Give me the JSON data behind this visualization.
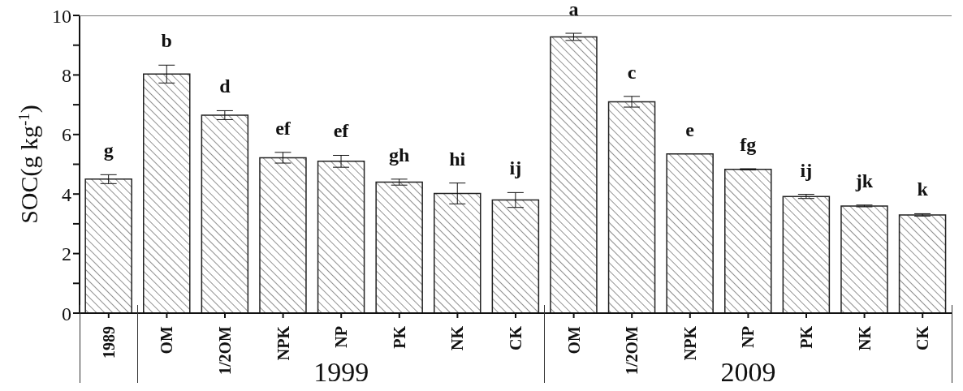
{
  "chart_data": {
    "type": "bar",
    "ylabel": "SOC(g kg$^{-1}$)",
    "categories": [
      "1989",
      "OM",
      "1/2OM",
      "NPK",
      "NP",
      "PK",
      "NK",
      "CK",
      "OM",
      "1/2OM",
      "NPK",
      "NP",
      "PK",
      "NK",
      "CK"
    ],
    "values": [
      4.5,
      8.03,
      6.65,
      5.22,
      5.1,
      4.4,
      4.02,
      3.8,
      9.28,
      7.1,
      5.35,
      4.83,
      3.92,
      3.6,
      3.3
    ],
    "errors": [
      0.15,
      0.3,
      0.15,
      0.18,
      0.2,
      0.1,
      0.35,
      0.25,
      0.12,
      0.18,
      null,
      0.02,
      0.07,
      0.03,
      0.04
    ],
    "value_labels": [
      "g",
      "b",
      "d",
      "ef",
      "ef",
      "gh",
      "hi",
      "ij",
      "a",
      "c",
      "e",
      "fg",
      "ij",
      "jk",
      "k"
    ],
    "color": "#222222",
    "ylim": [
      0,
      10
    ],
    "yticks": [
      0,
      {
        "value": 1,
        "label": null
      },
      2,
      {
        "value": 3,
        "label": null
      },
      4,
      {
        "value": 5,
        "label": null
      },
      6,
      {
        "value": 7,
        "label": null
      },
      8,
      {
        "value": 9,
        "label": null
      },
      10
    ],
    "annotations": [
      "1999",
      "2009"
    ]
  }
}
